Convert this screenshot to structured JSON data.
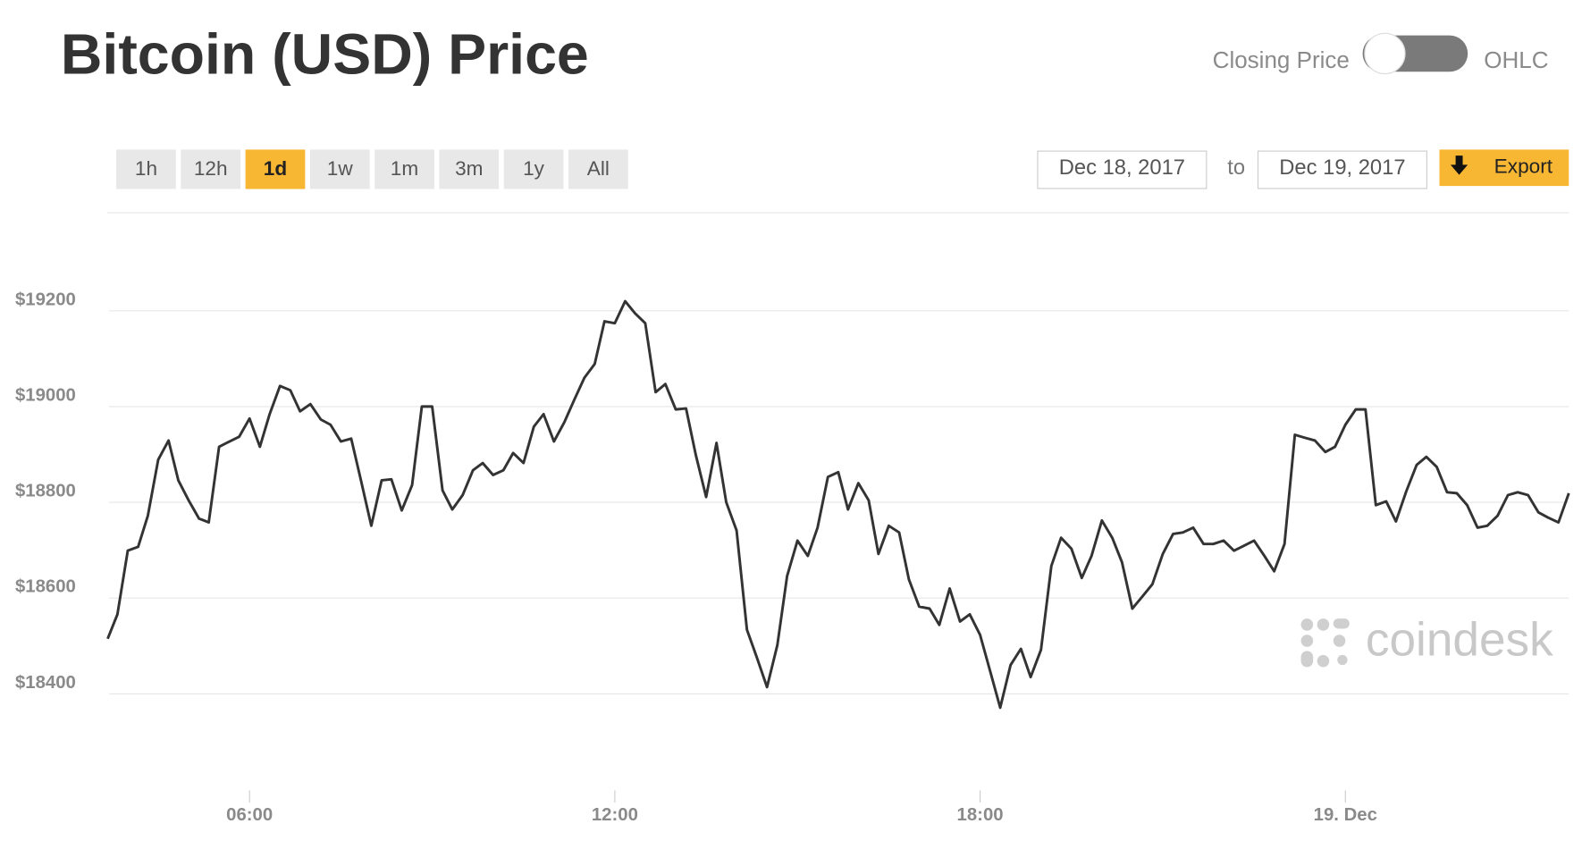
{
  "header": {
    "title": "Bitcoin (USD) Price",
    "toggle_left": "Closing Price",
    "toggle_right": "OHLC"
  },
  "range_buttons": [
    "1h",
    "12h",
    "1d",
    "1w",
    "1m",
    "3m",
    "1y",
    "All"
  ],
  "active_range": "1d",
  "date_range": {
    "from": "Dec 18, 2017",
    "separator": "to",
    "to": "Dec 19, 2017"
  },
  "export": "Export",
  "watermark": "coindesk",
  "chart_data": {
    "type": "line",
    "color": "#333333",
    "grid": true,
    "x": [
      3.67,
      3.83,
      4,
      4.17,
      4.33,
      4.5,
      4.67,
      4.83,
      5,
      5.17,
      5.33,
      5.5,
      5.67,
      5.83,
      6,
      6.17,
      6.33,
      6.5,
      6.67,
      6.83,
      7,
      7.17,
      7.33,
      7.5,
      7.67,
      7.83,
      8,
      8.17,
      8.33,
      8.5,
      8.67,
      8.83,
      9,
      9.17,
      9.33,
      9.5,
      9.67,
      9.83,
      10,
      10.17,
      10.33,
      10.5,
      10.67,
      10.83,
      11,
      11.17,
      11.33,
      11.5,
      11.67,
      11.83,
      12,
      12.17,
      12.33,
      12.5,
      12.67,
      12.83,
      13,
      13.17,
      13.33,
      13.5,
      13.67,
      13.83,
      14,
      14.17,
      14.33,
      14.5,
      14.67,
      14.83,
      15,
      15.17,
      15.33,
      15.5,
      15.67,
      15.83,
      16,
      16.17,
      16.33,
      16.5,
      16.67,
      16.83,
      17,
      17.17,
      17.33,
      17.5,
      17.67,
      17.83,
      18,
      18.17,
      18.33,
      18.5,
      18.67,
      18.83,
      19,
      19.17,
      19.33,
      19.5,
      19.67,
      19.83,
      20,
      20.17,
      20.33,
      20.5,
      20.67,
      20.83,
      21,
      21.17,
      21.33,
      21.5,
      21.67,
      21.83,
      22,
      22.17,
      22.33,
      22.5,
      22.67,
      22.83,
      23,
      23.17,
      23.33,
      23.5,
      23.67,
      23.83,
      24,
      24.17,
      24.33,
      24.5,
      24.67,
      24.83,
      25,
      25.17,
      25.33,
      25.5,
      25.67,
      25.83,
      26,
      26.17,
      26.33,
      26.5,
      26.67,
      26.83,
      27,
      27.17,
      27.33,
      27.5,
      27.67
    ],
    "values": [
      18514,
      18565,
      18698,
      18706,
      18771,
      18888,
      18928,
      18845,
      18803,
      18765,
      18757,
      18915,
      18926,
      18936,
      18974,
      18915,
      18983,
      19042,
      19033,
      18989,
      19004,
      18972,
      18961,
      18926,
      18932,
      18845,
      18750,
      18845,
      18847,
      18782,
      18835,
      18999,
      18999,
      18824,
      18784,
      18814,
      18866,
      18881,
      18856,
      18866,
      18902,
      18881,
      18957,
      18983,
      18926,
      18966,
      19012,
      19059,
      19088,
      19177,
      19173,
      19219,
      19194,
      19173,
      19029,
      19046,
      18993,
      18995,
      18898,
      18810,
      18923,
      18799,
      18740,
      18533,
      18476,
      18413,
      18501,
      18645,
      18719,
      18687,
      18746,
      18852,
      18862,
      18784,
      18839,
      18803,
      18691,
      18750,
      18736,
      18638,
      18581,
      18577,
      18543,
      18619,
      18550,
      18565,
      18522,
      18444,
      18370,
      18459,
      18493,
      18434,
      18491,
      18666,
      18725,
      18702,
      18641,
      18687,
      18761,
      18725,
      18674,
      18577,
      18603,
      18628,
      18691,
      18733,
      18736,
      18746,
      18712,
      18712,
      18719,
      18698,
      18708,
      18719,
      18687,
      18655,
      18712,
      18940,
      18934,
      18928,
      18904,
      18915,
      18961,
      18993,
      18993,
      18793,
      18801,
      18759,
      18822,
      18877,
      18894,
      18873,
      18820,
      18818,
      18793,
      18746,
      18750,
      18771,
      18814,
      18820,
      18814,
      18778,
      18767,
      18757,
      18818
    ],
    "xlim": [
      3.67,
      27.67
    ],
    "xticks": [
      {
        "value": 6,
        "label": "06:00"
      },
      {
        "value": 12,
        "label": "12:00"
      },
      {
        "value": 18,
        "label": "18:00"
      },
      {
        "value": 24,
        "label": "19. Dec"
      }
    ],
    "ylim": [
      18200,
      19400
    ],
    "yticks": [
      {
        "value": 18400,
        "label": "$18400"
      },
      {
        "value": 18600,
        "label": "$18600"
      },
      {
        "value": 18800,
        "label": "$18800"
      },
      {
        "value": 19000,
        "label": "$19000"
      },
      {
        "value": 19200,
        "label": "$19200"
      }
    ]
  }
}
